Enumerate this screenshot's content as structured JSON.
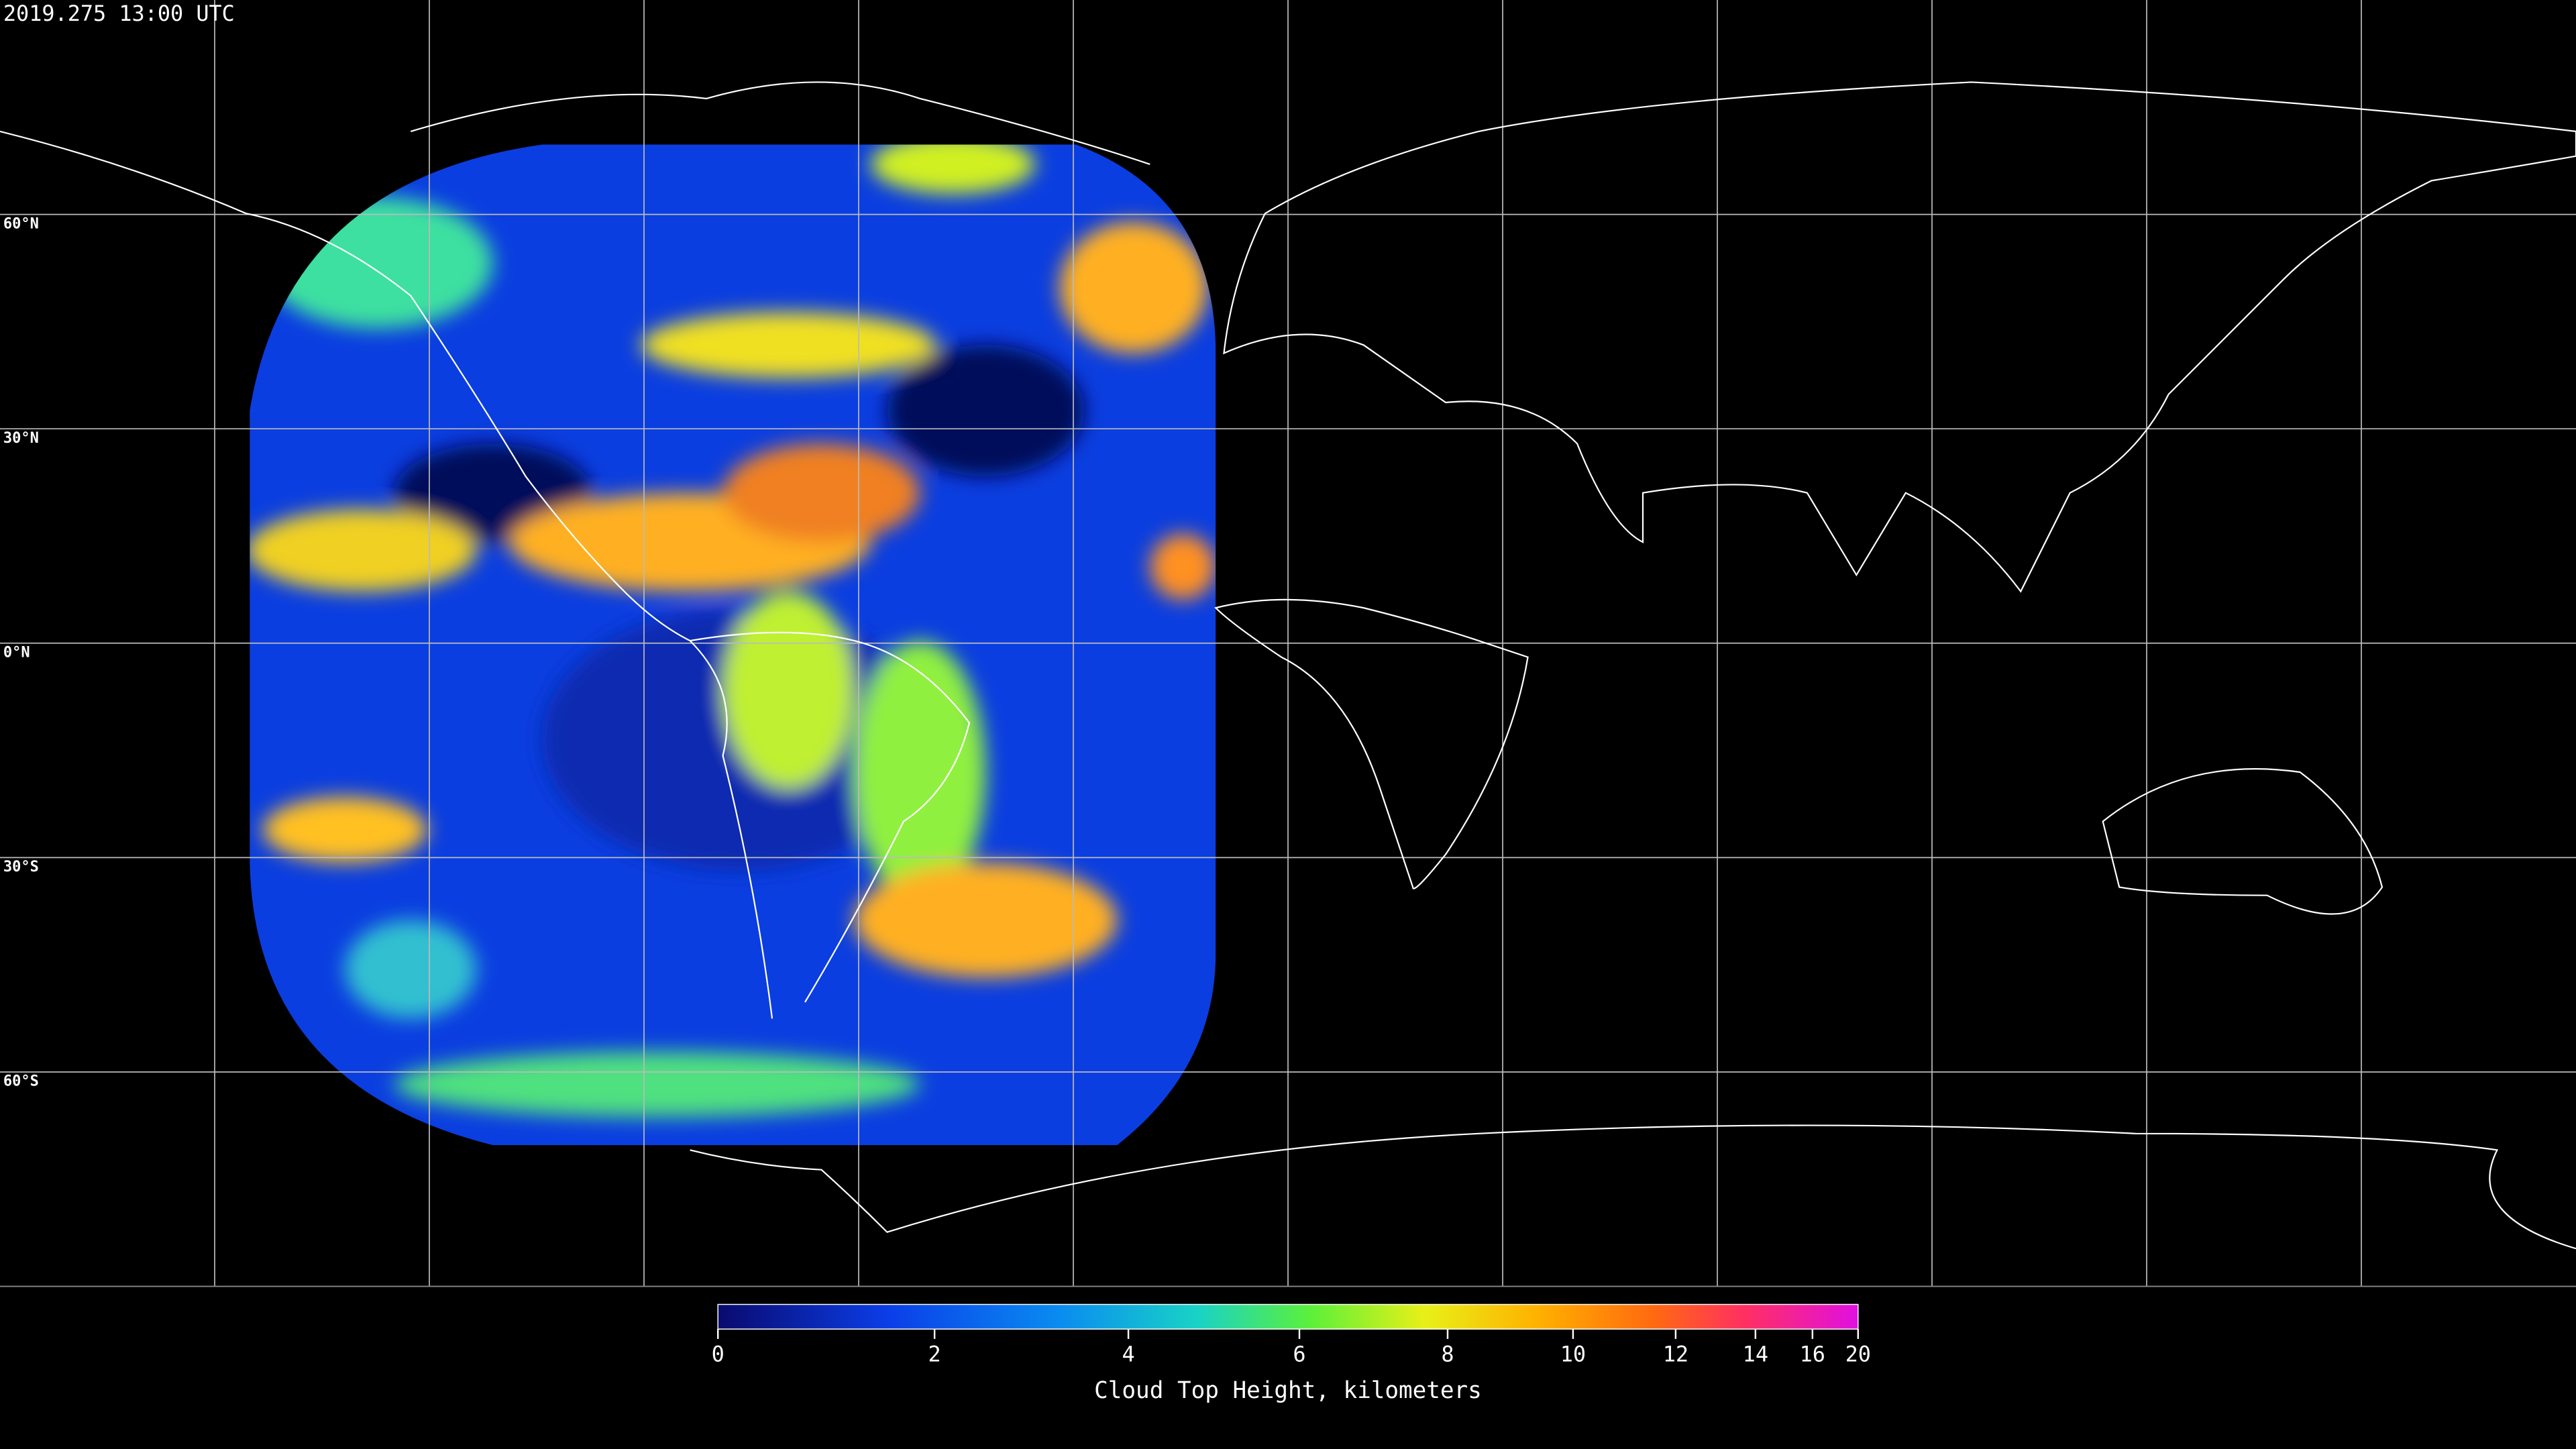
{
  "title": "2019.275 13:00 UTC",
  "map": {
    "lat_labels": [
      {
        "value": 60,
        "label": "60°N"
      },
      {
        "value": 30,
        "label": "30°N"
      },
      {
        "value": 0,
        "label": "0°N"
      },
      {
        "value": -30,
        "label": "30°S"
      },
      {
        "value": -60,
        "label": "60°S"
      }
    ]
  },
  "colorbar": {
    "label": "Cloud Top Height, kilometers",
    "ticks": [
      0,
      2,
      4,
      6,
      8,
      10,
      12,
      14,
      16,
      20
    ]
  }
}
